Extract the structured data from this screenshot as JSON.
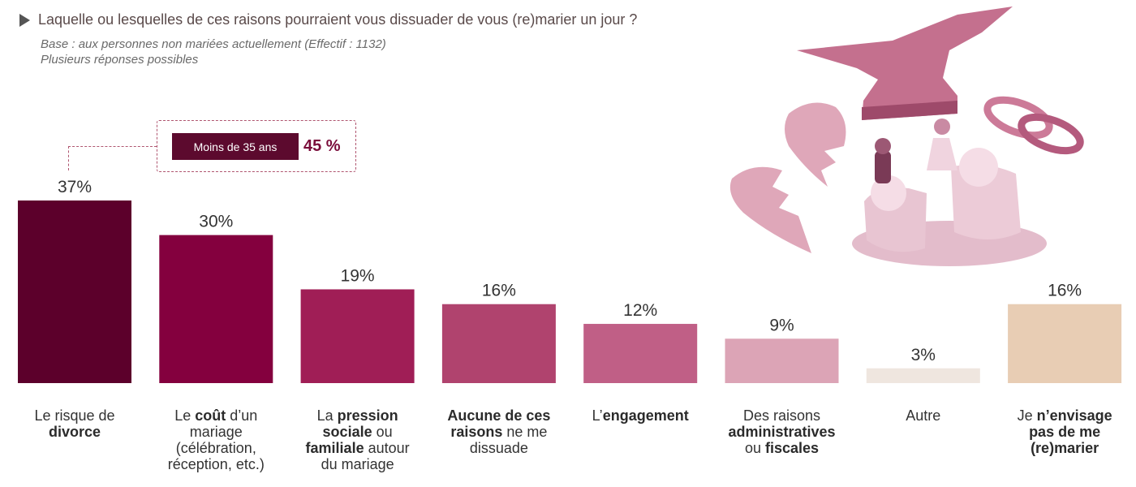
{
  "header": {
    "question": "Laquelle ou lesquelles de ces raisons pourraient vous dissuader de vous (re)marier un jour ?",
    "base": "Base : aux personnes non mariées actuellement (Effectif : 1132)",
    "note": "Plusieurs réponses possibles"
  },
  "callout": {
    "label": "Moins de 35 ans",
    "value": "45 %"
  },
  "illustration": {
    "icons": [
      "broken-heart-icon",
      "anvil-icon",
      "wedding-rings-icon",
      "wedding-cake-icon"
    ]
  },
  "chart_data": {
    "type": "bar",
    "categories": [
      "Le risque de divorce",
      "Le coût d’un mariage (célébration, réception, etc.)",
      "La pression sociale ou familiale autour du mariage",
      "Aucune de ces raisons ne me dissuade",
      "L’engagement",
      "Des raisons administratives ou fiscales",
      "Autre",
      "Je n’envisage pas de me (re)marier"
    ],
    "values": [
      37,
      30,
      19,
      16,
      12,
      9,
      3,
      16
    ],
    "value_labels": [
      "37%",
      "30%",
      "19%",
      "16%",
      "12%",
      "9%",
      "3%",
      "16%"
    ],
    "colors": [
      "#5c002b",
      "#84003e",
      "#a01e56",
      "#b0436e",
      "#c05f86",
      "#dca4b6",
      "#efe6df",
      "#e8cdb4"
    ],
    "label_parts": [
      [
        {
          "t": "Le risque de ",
          "b": false
        },
        {
          "t": "divorce",
          "b": true
        }
      ],
      [
        {
          "t": "Le ",
          "b": false
        },
        {
          "t": "coût",
          "b": true
        },
        {
          "t": " d’un mariage (célébration, réception, etc.)",
          "b": false
        }
      ],
      [
        {
          "t": "La ",
          "b": false
        },
        {
          "t": "pression sociale",
          "b": true
        },
        {
          "t": " ou ",
          "b": false
        },
        {
          "t": "familiale",
          "b": true
        },
        {
          "t": " autour du mariage",
          "b": false
        }
      ],
      [
        {
          "t": "Aucune de ces raisons",
          "b": true
        },
        {
          "t": " ne me dissuade",
          "b": false
        }
      ],
      [
        {
          "t": "L’",
          "b": false
        },
        {
          "t": "engagement",
          "b": true
        }
      ],
      [
        {
          "t": "Des raisons ",
          "b": false
        },
        {
          "t": "administratives",
          "b": true
        },
        {
          "t": " ou ",
          "b": false
        },
        {
          "t": "fiscales",
          "b": true
        }
      ],
      [
        {
          "t": "Autre",
          "b": false
        }
      ],
      [
        {
          "t": "Je ",
          "b": false
        },
        {
          "t": "n’envisage pas de me ",
          "b": true
        },
        {
          "t": "(re)marier",
          "b": true
        }
      ]
    ],
    "grid": false,
    "legend": "none"
  }
}
